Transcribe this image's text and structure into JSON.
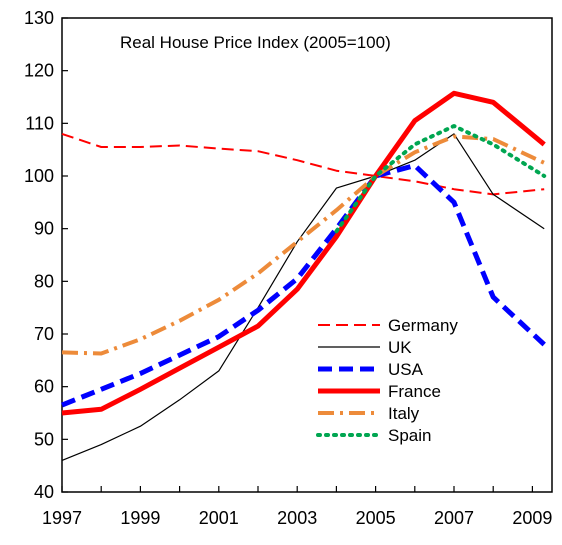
{
  "chart_data": {
    "type": "line",
    "title": "Real House Price Index (2005=100)",
    "xlabel": "",
    "ylabel": "",
    "xlim": [
      1997,
      2009.5
    ],
    "ylim": [
      40,
      130
    ],
    "x_ticks": [
      "1997",
      "1999",
      "2001",
      "2003",
      "2005",
      "2007",
      "2009"
    ],
    "y_ticks": [
      "40",
      "50",
      "60",
      "70",
      "80",
      "90",
      "100",
      "110",
      "120",
      "130"
    ],
    "grid": false,
    "legend_position": "bottom-right",
    "x": [
      1997,
      1998,
      1999,
      2000,
      2001,
      2002,
      2003,
      2004,
      2005,
      2006,
      2007,
      2008,
      2009.3
    ],
    "series": [
      {
        "name": "Germany",
        "color": "#ff0000",
        "style": "dashed",
        "values": [
          108,
          105.5,
          105.5,
          105.8,
          105.2,
          104.7,
          103,
          101,
          100,
          99,
          97.5,
          96.5,
          97.5
        ]
      },
      {
        "name": "UK",
        "color": "#000000",
        "style": "solid-thin",
        "values": [
          46,
          49,
          52.5,
          57.5,
          63,
          75,
          87.5,
          97.7,
          100,
          103,
          108,
          96.5,
          90
        ]
      },
      {
        "name": "USA",
        "color": "#0000ff",
        "style": "bold-dashed",
        "values": [
          56.5,
          59.5,
          62.5,
          66,
          69.5,
          74.5,
          80.5,
          90,
          100,
          102,
          95,
          77,
          68
        ]
      },
      {
        "name": "France",
        "color": "#ff0000",
        "style": "bold-solid",
        "values": [
          55,
          55.7,
          59.5,
          63.5,
          67.5,
          71.5,
          78.5,
          88.5,
          100,
          110.5,
          115.7,
          114,
          106
        ]
      },
      {
        "name": "Italy",
        "color": "#ed8b3a",
        "style": "dash-dot",
        "values": [
          66.5,
          66.3,
          69,
          72.5,
          76.5,
          81.5,
          87.5,
          93.5,
          100,
          104.5,
          107.5,
          107,
          102.5
        ]
      },
      {
        "name": "Spain",
        "color": "#00a651",
        "style": "dotted",
        "values": [
          null,
          null,
          null,
          null,
          null,
          null,
          null,
          89.5,
          100,
          106,
          109.5,
          106,
          100
        ]
      }
    ]
  }
}
